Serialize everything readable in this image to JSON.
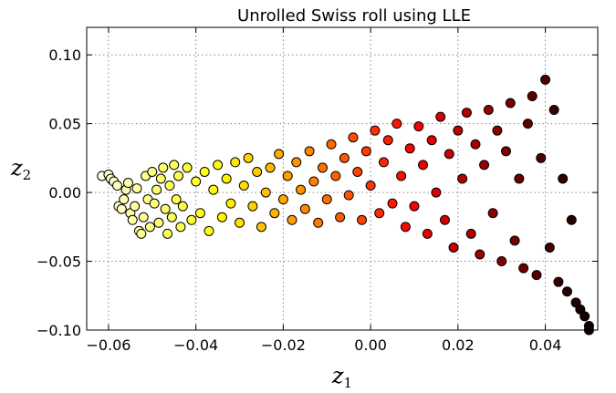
{
  "chart_data": {
    "type": "scatter",
    "title": "Unrolled Swiss roll using LLE",
    "xlabel": "z",
    "xlabel_sub": "1",
    "ylabel": "z",
    "ylabel_sub": "2",
    "xlim": [
      -0.065,
      0.052
    ],
    "ylim": [
      -0.1,
      0.12
    ],
    "x_ticks": [
      -0.06,
      -0.04,
      -0.02,
      0.0,
      0.02,
      0.04
    ],
    "x_tick_labels": [
      "−0.06",
      "−0.04",
      "−0.02",
      "0.00",
      "0.02",
      "0.04"
    ],
    "y_ticks": [
      0.1,
      0.05,
      0.0,
      -0.05,
      -0.1
    ],
    "y_tick_labels": [
      "0.10",
      "0.05",
      "0.00",
      "−0.05",
      "−0.10"
    ],
    "grid": true,
    "colormap": "hot",
    "marker_edge_color": "#000000",
    "points": [
      [
        -0.0615,
        0.012
      ],
      [
        -0.06,
        0.013
      ],
      [
        -0.0595,
        0.01
      ],
      [
        -0.0588,
        0.008
      ],
      [
        -0.058,
        0.005
      ],
      [
        -0.0577,
        -0.01
      ],
      [
        -0.057,
        -0.012
      ],
      [
        -0.0565,
        -0.005
      ],
      [
        -0.056,
        0.002
      ],
      [
        -0.0555,
        0.007
      ],
      [
        -0.055,
        -0.015
      ],
      [
        -0.0545,
        -0.02
      ],
      [
        -0.054,
        -0.01
      ],
      [
        -0.0535,
        0.003
      ],
      [
        -0.053,
        -0.028
      ],
      [
        -0.0525,
        -0.03
      ],
      [
        -0.052,
        -0.018
      ],
      [
        -0.0515,
        0.012
      ],
      [
        -0.051,
        -0.005
      ],
      [
        -0.0505,
        -0.025
      ],
      [
        -0.05,
        0.015
      ],
      [
        -0.0495,
        -0.008
      ],
      [
        -0.049,
        0.002
      ],
      [
        -0.0485,
        -0.022
      ],
      [
        -0.048,
        0.01
      ],
      [
        -0.0475,
        0.018
      ],
      [
        -0.047,
        -0.012
      ],
      [
        -0.0465,
        -0.03
      ],
      [
        -0.046,
        0.005
      ],
      [
        -0.0455,
        -0.018
      ],
      [
        -0.045,
        0.02
      ],
      [
        -0.0445,
        -0.005
      ],
      [
        -0.044,
        0.012
      ],
      [
        -0.0435,
        -0.025
      ],
      [
        -0.043,
        -0.01
      ],
      [
        -0.042,
        0.018
      ],
      [
        -0.041,
        -0.02
      ],
      [
        -0.04,
        0.008
      ],
      [
        -0.039,
        -0.015
      ],
      [
        -0.038,
        0.015
      ],
      [
        -0.037,
        -0.028
      ],
      [
        -0.036,
        0.002
      ],
      [
        -0.035,
        0.02
      ],
      [
        -0.034,
        -0.018
      ],
      [
        -0.033,
        0.01
      ],
      [
        -0.032,
        -0.008
      ],
      [
        -0.031,
        0.022
      ],
      [
        -0.03,
        -0.022
      ],
      [
        -0.029,
        0.005
      ],
      [
        -0.028,
        0.025
      ],
      [
        -0.027,
        -0.01
      ],
      [
        -0.026,
        0.015
      ],
      [
        -0.025,
        -0.025
      ],
      [
        -0.024,
        0.0
      ],
      [
        -0.023,
        0.018
      ],
      [
        -0.022,
        -0.015
      ],
      [
        -0.021,
        0.028
      ],
      [
        -0.02,
        -0.005
      ],
      [
        -0.019,
        0.012
      ],
      [
        -0.018,
        -0.02
      ],
      [
        -0.017,
        0.022
      ],
      [
        -0.016,
        0.002
      ],
      [
        -0.015,
        -0.012
      ],
      [
        -0.014,
        0.03
      ],
      [
        -0.013,
        0.008
      ],
      [
        -0.012,
        -0.022
      ],
      [
        -0.011,
        0.018
      ],
      [
        -0.01,
        -0.005
      ],
      [
        -0.009,
        0.035
      ],
      [
        -0.008,
        0.012
      ],
      [
        -0.007,
        -0.018
      ],
      [
        -0.006,
        0.025
      ],
      [
        -0.005,
        -0.002
      ],
      [
        -0.004,
        0.04
      ],
      [
        -0.003,
        0.015
      ],
      [
        -0.002,
        -0.02
      ],
      [
        -0.001,
        0.03
      ],
      [
        0.0,
        0.005
      ],
      [
        0.001,
        0.045
      ],
      [
        0.002,
        -0.015
      ],
      [
        0.003,
        0.022
      ],
      [
        0.004,
        0.038
      ],
      [
        0.005,
        -0.008
      ],
      [
        0.006,
        0.05
      ],
      [
        0.007,
        0.012
      ],
      [
        0.008,
        -0.025
      ],
      [
        0.009,
        0.032
      ],
      [
        0.01,
        -0.01
      ],
      [
        0.011,
        0.048
      ],
      [
        0.012,
        0.02
      ],
      [
        0.013,
        -0.03
      ],
      [
        0.014,
        0.038
      ],
      [
        0.015,
        0.0
      ],
      [
        0.016,
        0.055
      ],
      [
        0.017,
        -0.02
      ],
      [
        0.018,
        0.028
      ],
      [
        0.019,
        -0.04
      ],
      [
        0.02,
        0.045
      ],
      [
        0.021,
        0.01
      ],
      [
        0.022,
        0.058
      ],
      [
        0.023,
        -0.03
      ],
      [
        0.024,
        0.035
      ],
      [
        0.025,
        -0.045
      ],
      [
        0.026,
        0.02
      ],
      [
        0.027,
        0.06
      ],
      [
        0.028,
        -0.015
      ],
      [
        0.029,
        0.045
      ],
      [
        0.03,
        -0.05
      ],
      [
        0.031,
        0.03
      ],
      [
        0.032,
        0.065
      ],
      [
        0.033,
        -0.035
      ],
      [
        0.034,
        0.01
      ],
      [
        0.035,
        -0.055
      ],
      [
        0.036,
        0.05
      ],
      [
        0.037,
        0.07
      ],
      [
        0.038,
        -0.06
      ],
      [
        0.039,
        0.025
      ],
      [
        0.04,
        0.082
      ],
      [
        0.041,
        -0.04
      ],
      [
        0.042,
        0.06
      ],
      [
        0.043,
        -0.065
      ],
      [
        0.044,
        0.01
      ],
      [
        0.045,
        -0.072
      ],
      [
        0.046,
        -0.02
      ],
      [
        0.047,
        -0.08
      ],
      [
        0.048,
        -0.085
      ],
      [
        0.049,
        -0.09
      ],
      [
        0.05,
        -0.097
      ],
      [
        0.05,
        -0.1
      ]
    ]
  }
}
